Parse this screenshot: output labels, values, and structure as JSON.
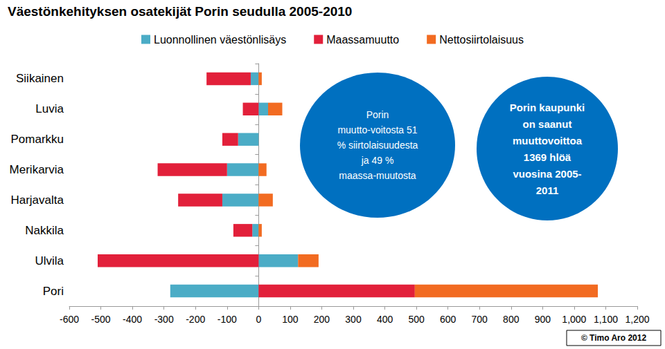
{
  "chart_data": {
    "type": "bar",
    "title": "Väestönkehityksen osatekijät Porin seudulla 2005-2010",
    "orientation": "horizontal",
    "stacked": true,
    "grid": false,
    "legend": "top",
    "categories": [
      "Siikainen",
      "Luvia",
      "Pomarkku",
      "Merikarvia",
      "Harjavalta",
      "Nakkila",
      "Ulvila",
      "Pori"
    ],
    "series": [
      {
        "name": "Luonnollinen väestönlisäys",
        "color": "#4bacc6",
        "values": [
          -25,
          30,
          -65,
          -100,
          -115,
          -20,
          125,
          -280
        ]
      },
      {
        "name": "Maassamuutto",
        "color": "#e2203a",
        "values": [
          -140,
          -50,
          -50,
          -220,
          -140,
          -60,
          -510,
          495
        ]
      },
      {
        "name": "Nettosiirtolaisuus",
        "color": "#f26b21",
        "values": [
          10,
          45,
          0,
          25,
          45,
          10,
          65,
          580
        ]
      }
    ],
    "xlim": [
      -600,
      1200
    ],
    "xticks": [
      -600,
      -500,
      -400,
      -300,
      -200,
      -100,
      0,
      100,
      200,
      300,
      400,
      500,
      600,
      700,
      800,
      900,
      1000,
      1100,
      1200
    ],
    "annotations": [
      {
        "text": [
          "Porin",
          "muutto-voitosta 51",
          "% siirtolaisuudesta",
          "ja 49 %",
          "maassa-muutosta"
        ],
        "color": "#0070c0"
      },
      {
        "text": [
          "Porin kaupunki",
          "on saanut",
          "muuttovoittoa",
          "1369 hlöä",
          "vuosina 2005-",
          "2011"
        ],
        "color": "#0070c0"
      }
    ],
    "credit": "© Timo Aro 2012"
  }
}
